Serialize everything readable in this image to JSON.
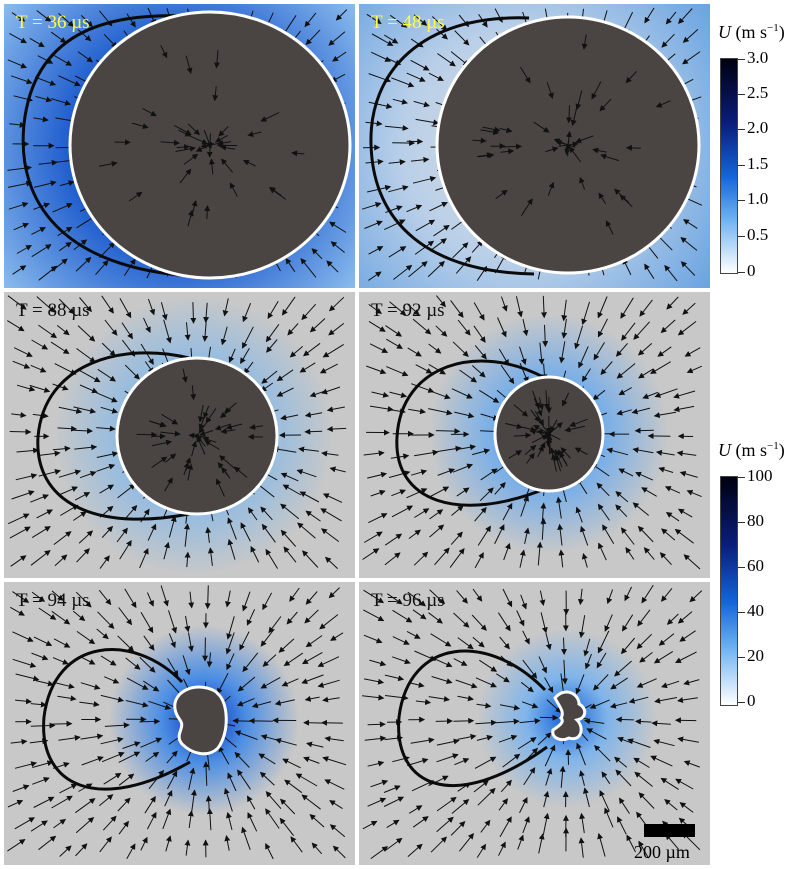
{
  "panels": [
    {
      "time_label": "T = 36 µs",
      "T_us": 36,
      "label_color": "#ffff33",
      "scale": "upper"
    },
    {
      "time_label": "T = 48 µs",
      "T_us": 48,
      "label_color": "#ffff33",
      "scale": "upper"
    },
    {
      "time_label": "T = 88 µs",
      "T_us": 88,
      "label_color": "#111111",
      "scale": "lower"
    },
    {
      "time_label": "T = 92 µs",
      "T_us": 92,
      "label_color": "#111111",
      "scale": "lower"
    },
    {
      "time_label": "T = 94 µs",
      "T_us": 94,
      "label_color": "#111111",
      "scale": "lower"
    },
    {
      "time_label": "T = 96 µs",
      "T_us": 96,
      "label_color": "#111111",
      "scale": "lower"
    }
  ],
  "colorbars": {
    "upper": {
      "title_italic": "U",
      "title_unit": "(m s",
      "title_exp": "−1",
      "title_close": ")",
      "min": 0,
      "max": 3.0,
      "ticks": [
        "3.0",
        "2.5",
        "2.0",
        "1.5",
        "1.0",
        "0.5",
        "0"
      ]
    },
    "lower": {
      "title_italic": "U",
      "title_unit": "(m s",
      "title_exp": "−1",
      "title_close": ")",
      "min": 0,
      "max": 100,
      "ticks": [
        "100",
        "80",
        "60",
        "40",
        "20",
        "0"
      ]
    }
  },
  "scale_bar": {
    "label": "200 µm"
  },
  "colors": {
    "bubble_fill": "#4a4542",
    "bubble_outline": "#ffffff",
    "contour": "#0a0a0a",
    "background": "#c8c8c8",
    "arrow": "#111111"
  }
}
